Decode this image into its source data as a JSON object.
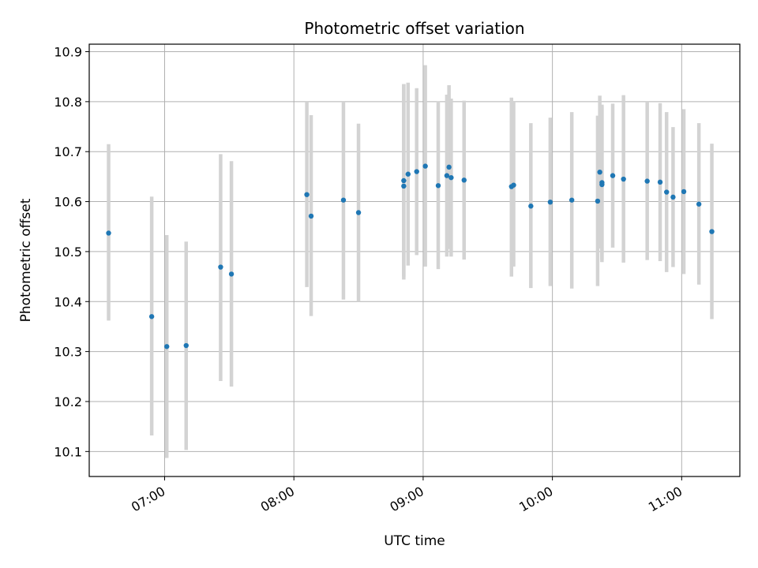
{
  "chart_data": {
    "type": "scatter",
    "title": "Photometric offset variation",
    "xlabel": "UTC time",
    "ylabel": "Photometric offset",
    "x_unit": "time (HH:MM)",
    "xlim": [
      "06:25",
      "11:27"
    ],
    "ylim": [
      10.05,
      10.915
    ],
    "x_ticks": [
      "07:00",
      "08:00",
      "09:00",
      "10:00",
      "11:00"
    ],
    "y_ticks": [
      "10.1",
      "10.2",
      "10.3",
      "10.4",
      "10.5",
      "10.6",
      "10.7",
      "10.8",
      "10.9"
    ],
    "grid": true,
    "legend": "none",
    "colors": {
      "point": "#1f77b4",
      "errorbar": "#d3d3d3",
      "grid": "#b0b0b0"
    },
    "series": [
      {
        "points": [
          {
            "x": "06:34",
            "y": 10.537,
            "ylo": 10.362,
            "yhi": 10.715
          },
          {
            "x": "06:54",
            "y": 10.37,
            "ylo": 10.132,
            "yhi": 10.61
          },
          {
            "x": "07:01",
            "y": 10.31,
            "ylo": 10.087,
            "yhi": 10.533
          },
          {
            "x": "07:10",
            "y": 10.312,
            "ylo": 10.103,
            "yhi": 10.52
          },
          {
            "x": "07:26",
            "y": 10.469,
            "ylo": 10.241,
            "yhi": 10.695
          },
          {
            "x": "07:31",
            "y": 10.455,
            "ylo": 10.23,
            "yhi": 10.681
          },
          {
            "x": "08:06",
            "y": 10.614,
            "ylo": 10.429,
            "yhi": 10.8
          },
          {
            "x": "08:08",
            "y": 10.571,
            "ylo": 10.371,
            "yhi": 10.773
          },
          {
            "x": "08:23",
            "y": 10.603,
            "ylo": 10.404,
            "yhi": 10.8
          },
          {
            "x": "08:30",
            "y": 10.578,
            "ylo": 10.4,
            "yhi": 10.756
          },
          {
            "x": "08:51",
            "y": 10.631,
            "ylo": 10.444,
            "yhi": 10.835
          },
          {
            "x": "08:51",
            "y": 10.642,
            "ylo": 10.45,
            "yhi": 10.835
          },
          {
            "x": "08:53",
            "y": 10.655,
            "ylo": 10.472,
            "yhi": 10.838
          },
          {
            "x": "08:57",
            "y": 10.66,
            "ylo": 10.493,
            "yhi": 10.827
          },
          {
            "x": "09:01",
            "y": 10.671,
            "ylo": 10.47,
            "yhi": 10.873
          },
          {
            "x": "09:07",
            "y": 10.632,
            "ylo": 10.465,
            "yhi": 10.801
          },
          {
            "x": "09:11",
            "y": 10.652,
            "ylo": 10.49,
            "yhi": 10.814
          },
          {
            "x": "09:12",
            "y": 10.669,
            "ylo": 10.505,
            "yhi": 10.833
          },
          {
            "x": "09:13",
            "y": 10.648,
            "ylo": 10.49,
            "yhi": 10.806
          },
          {
            "x": "09:19",
            "y": 10.643,
            "ylo": 10.484,
            "yhi": 10.802
          },
          {
            "x": "09:41",
            "y": 10.63,
            "ylo": 10.45,
            "yhi": 10.808
          },
          {
            "x": "09:42",
            "y": 10.633,
            "ylo": 10.47,
            "yhi": 10.8
          },
          {
            "x": "09:50",
            "y": 10.591,
            "ylo": 10.427,
            "yhi": 10.757
          },
          {
            "x": "09:59",
            "y": 10.599,
            "ylo": 10.431,
            "yhi": 10.768
          },
          {
            "x": "10:09",
            "y": 10.603,
            "ylo": 10.426,
            "yhi": 10.779
          },
          {
            "x": "10:21",
            "y": 10.601,
            "ylo": 10.431,
            "yhi": 10.772
          },
          {
            "x": "10:22",
            "y": 10.659,
            "ylo": 10.506,
            "yhi": 10.812
          },
          {
            "x": "10:23",
            "y": 10.638,
            "ylo": 10.484,
            "yhi": 10.794
          },
          {
            "x": "10:23",
            "y": 10.634,
            "ylo": 10.479,
            "yhi": 10.79
          },
          {
            "x": "10:28",
            "y": 10.652,
            "ylo": 10.508,
            "yhi": 10.796
          },
          {
            "x": "10:33",
            "y": 10.645,
            "ylo": 10.478,
            "yhi": 10.813
          },
          {
            "x": "10:44",
            "y": 10.641,
            "ylo": 10.483,
            "yhi": 10.8
          },
          {
            "x": "10:50",
            "y": 10.639,
            "ylo": 10.481,
            "yhi": 10.797
          },
          {
            "x": "10:53",
            "y": 10.619,
            "ylo": 10.459,
            "yhi": 10.779
          },
          {
            "x": "10:56",
            "y": 10.609,
            "ylo": 10.469,
            "yhi": 10.749
          },
          {
            "x": "11:01",
            "y": 10.62,
            "ylo": 10.455,
            "yhi": 10.785
          },
          {
            "x": "11:08",
            "y": 10.595,
            "ylo": 10.434,
            "yhi": 10.757
          },
          {
            "x": "11:14",
            "y": 10.54,
            "ylo": 10.365,
            "yhi": 10.716
          }
        ]
      }
    ]
  }
}
